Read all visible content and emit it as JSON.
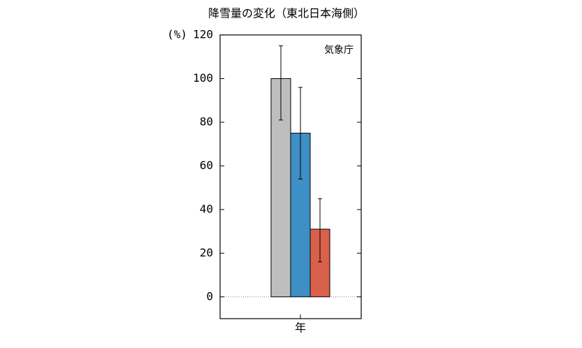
{
  "chart_data": {
    "type": "bar",
    "title": "降雪量の変化（東北日本海側）",
    "ylabel": "(%)",
    "annotation": "気象庁",
    "categories": [
      "年"
    ],
    "series": [
      {
        "color": "#bebebe",
        "values": [
          100
        ],
        "errors_plus": [
          15
        ],
        "errors_minus": [
          19
        ]
      },
      {
        "color": "#3d8fc5",
        "values": [
          75
        ],
        "errors_plus": [
          21
        ],
        "errors_minus": [
          21
        ]
      },
      {
        "color": "#d9614c",
        "values": [
          31
        ],
        "errors_plus": [
          14
        ],
        "errors_minus": [
          15
        ]
      }
    ],
    "ylim": [
      -10,
      120
    ],
    "yticks": [
      0,
      20,
      40,
      60,
      80,
      100,
      120
    ]
  }
}
